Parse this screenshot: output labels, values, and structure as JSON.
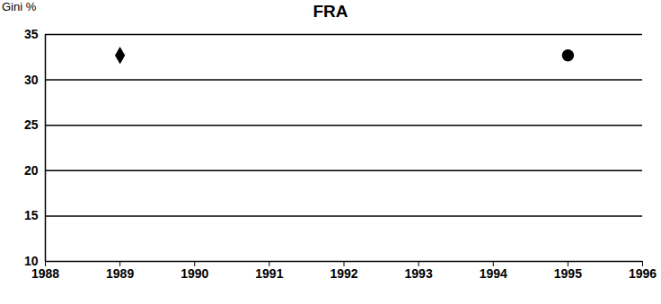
{
  "chart_data": {
    "type": "scatter",
    "title": "FRA",
    "y_label": "Gini %",
    "x": [
      1989,
      1995
    ],
    "series": [
      {
        "color": "#000000",
        "marker": "diamond",
        "values": [
          32.7,
          null
        ]
      },
      {
        "color": "#000000",
        "marker": "circle",
        "values": [
          null,
          32.7
        ]
      }
    ],
    "xlim": [
      1988,
      1996
    ],
    "xticks": [
      1988,
      1989,
      1990,
      1991,
      1992,
      1993,
      1994,
      1995,
      1996
    ],
    "ylim": [
      10,
      35
    ],
    "yticks": [
      10,
      15,
      20,
      25,
      30,
      35
    ],
    "grid": true
  }
}
